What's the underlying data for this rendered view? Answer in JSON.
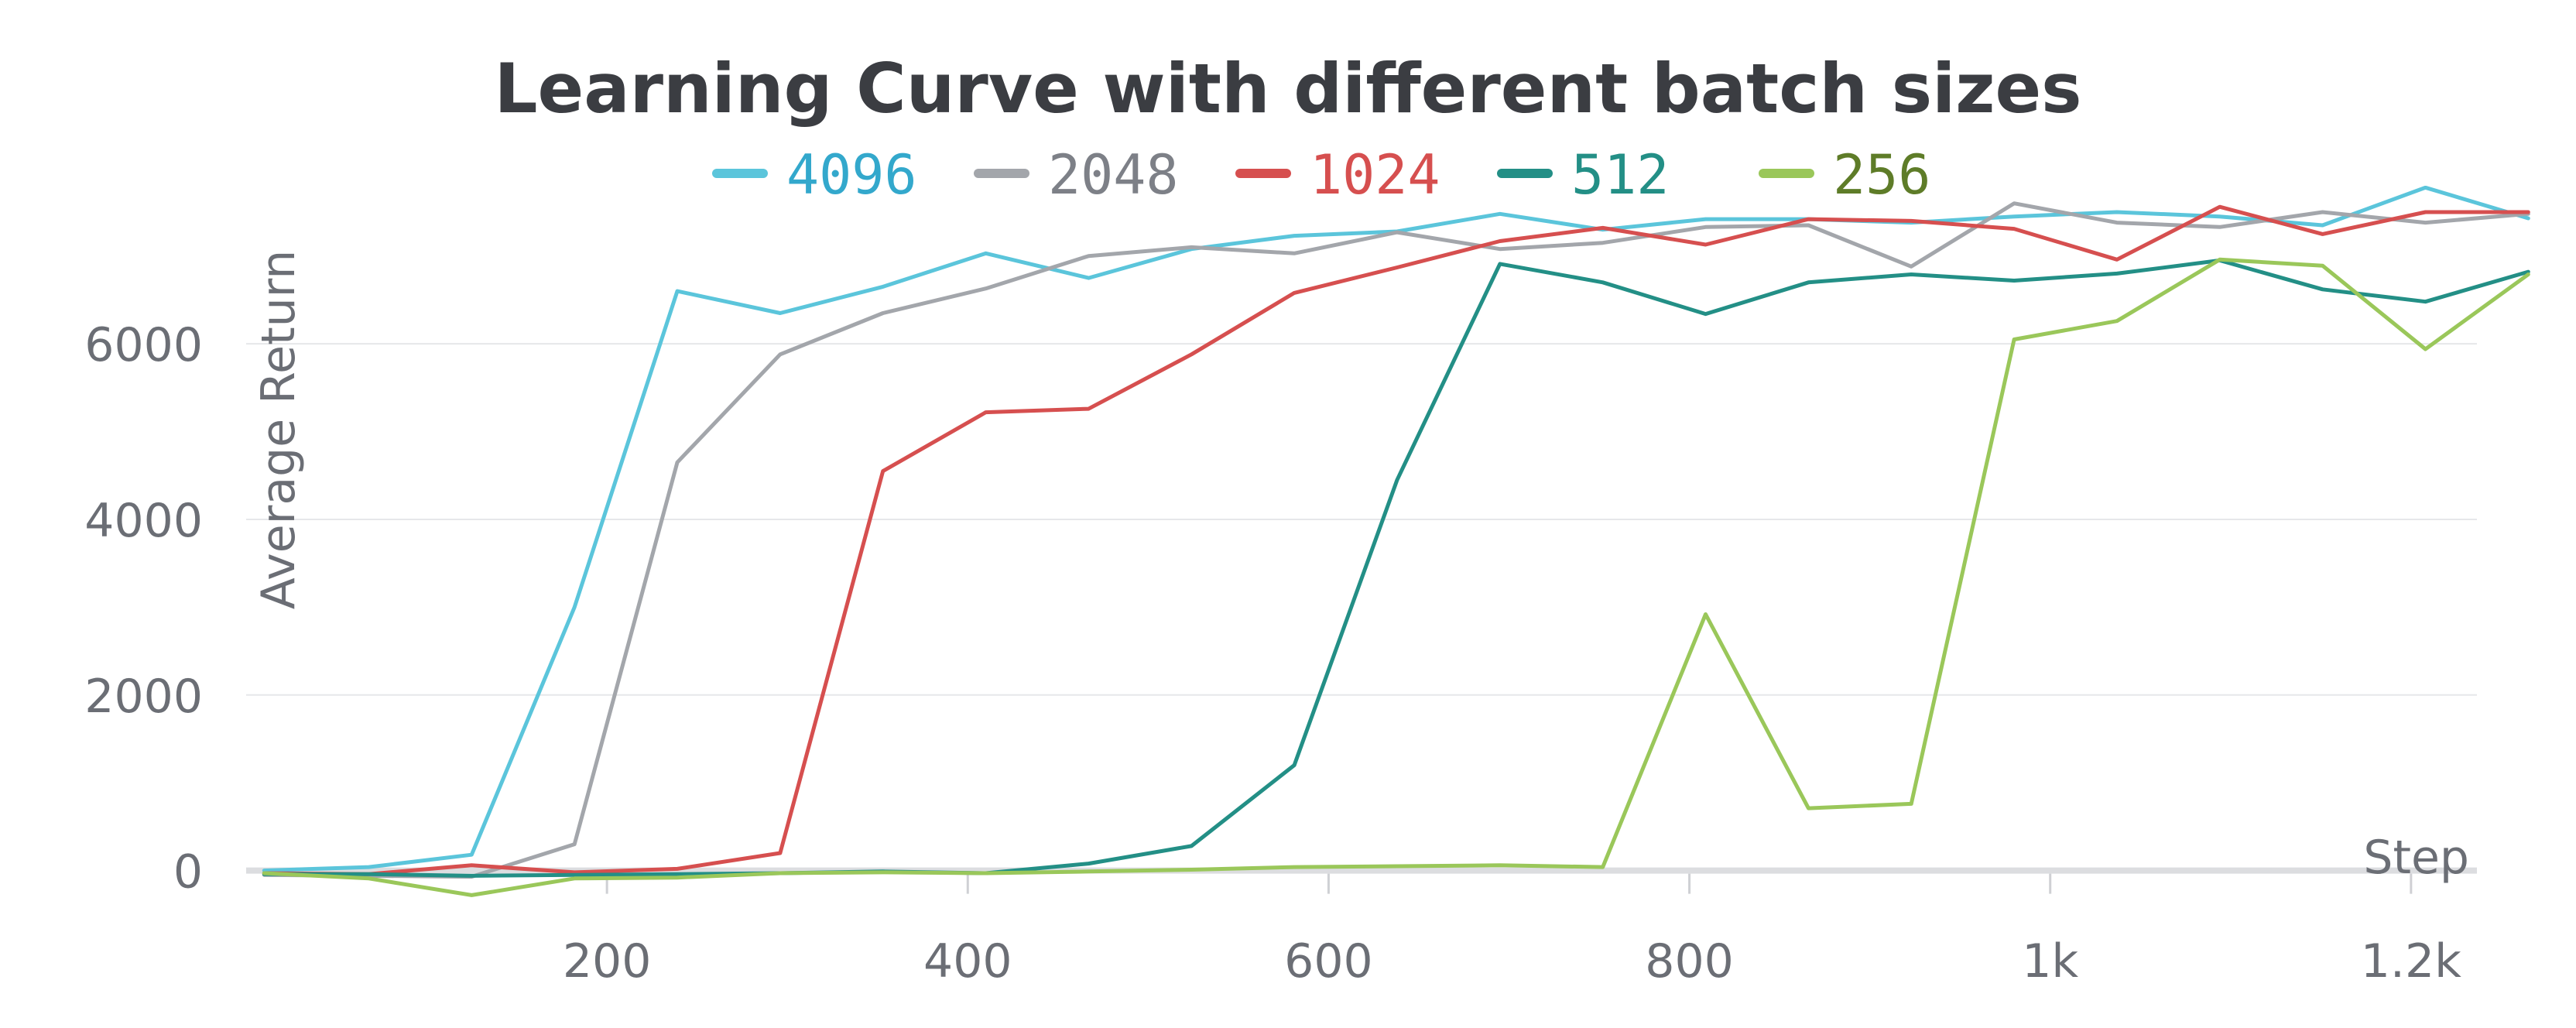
{
  "chart_data": {
    "type": "line",
    "title": "Learning Curve with different batch sizes",
    "xlabel": "Step",
    "ylabel": "Average Return",
    "xlim": [
      0,
      1270
    ],
    "ylim": [
      -400,
      7800
    ],
    "x_ticks": [
      200,
      400,
      600,
      800,
      1000,
      1200
    ],
    "x_tick_labels": [
      "200",
      "400",
      "600",
      "800",
      "1k",
      "1.2k"
    ],
    "y_ticks": [
      0,
      2000,
      4000,
      6000
    ],
    "y_tick_labels": [
      "0",
      "2000",
      "4000",
      "6000"
    ],
    "grid": true,
    "legend_position": "top",
    "x": [
      10,
      68,
      125,
      182,
      239,
      296,
      353,
      410,
      467,
      524,
      581,
      638,
      695,
      752,
      809,
      866,
      923,
      980,
      1037,
      1094,
      1151,
      1208,
      1265
    ],
    "series": [
      {
        "name": "4096",
        "color": "#5bc5db",
        "label_color": "#33a8cc",
        "values": [
          0,
          40,
          180,
          3000,
          6600,
          6350,
          6650,
          7030,
          6750,
          7080,
          7230,
          7280,
          7480,
          7300,
          7420,
          7420,
          7380,
          7450,
          7500,
          7450,
          7350,
          7780,
          7430
        ]
      },
      {
        "name": "2048",
        "color": "#a3a6ab",
        "label_color": "#7d8087",
        "values": [
          -50,
          -60,
          -70,
          300,
          4650,
          5880,
          6350,
          6630,
          7000,
          7100,
          7030,
          7270,
          7080,
          7150,
          7330,
          7350,
          6880,
          7600,
          7380,
          7330,
          7500,
          7380,
          7480
        ]
      },
      {
        "name": "1024",
        "color": "#d64f4f",
        "label_color": "#d64f4f",
        "values": [
          -30,
          -40,
          60,
          -20,
          20,
          200,
          4550,
          5220,
          5260,
          5880,
          6580,
          6870,
          7170,
          7320,
          7130,
          7420,
          7400,
          7310,
          6960,
          7560,
          7250,
          7500,
          7500
        ]
      },
      {
        "name": "512",
        "color": "#238f86",
        "label_color": "#238f86",
        "values": [
          -40,
          -40,
          -60,
          -50,
          -40,
          -30,
          -10,
          -30,
          80,
          280,
          1200,
          4450,
          6910,
          6700,
          6340,
          6700,
          6790,
          6720,
          6800,
          6950,
          6620,
          6480,
          6820
        ]
      },
      {
        "name": "256",
        "color": "#9ac75a",
        "label_color": "#5e7c28",
        "values": [
          -30,
          -90,
          -280,
          -90,
          -80,
          -30,
          -20,
          -30,
          -10,
          10,
          40,
          50,
          60,
          40,
          2920,
          710,
          760,
          6050,
          6260,
          6960,
          6890,
          5940,
          6790
        ]
      }
    ]
  }
}
